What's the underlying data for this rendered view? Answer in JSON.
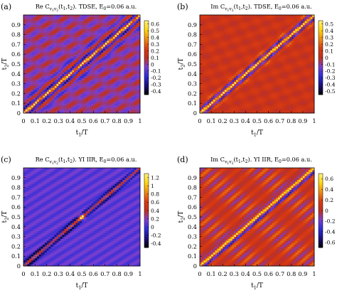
{
  "panels_order": [
    "a",
    "b",
    "c",
    "d"
  ],
  "chart_data": [
    {
      "type": "heatmap",
      "letter": "(a)",
      "title": "Re C",
      "title_sub": "v",
      "title_subsub": "1",
      "title_sub2": "v",
      "title_subsub2": "2",
      "title_rest": "(t",
      "title_rest_sub": "1",
      "title_rest2": ",t",
      "title_rest_sub2": "2",
      "title_rest3": "). TDSE, E",
      "title_rest_sub3": "0",
      "title_rest4": "=0.06 a.u.",
      "xlabel": "t",
      "xlabel_sub": "1",
      "xlabel_rest": "/T",
      "ylabel": "t",
      "ylabel_sub": "2",
      "ylabel_rest": "/T",
      "xlim": [
        0,
        1
      ],
      "ylim": [
        0,
        1
      ],
      "xticks": [
        "0",
        "0.1",
        "0.2",
        "0.3",
        "0.4",
        "0.5",
        "0.6",
        "0.7",
        "0.8",
        "0.9",
        "1"
      ],
      "yticks": [
        "0",
        "0.1",
        "0.2",
        "0.3",
        "0.4",
        "0.5",
        "0.6",
        "0.7",
        "0.8",
        "0.9"
      ],
      "colorbar_ticks": [
        "0.6",
        "0.5",
        "0.4",
        "0.3",
        "0.2",
        "0.1",
        "0",
        "-0.1",
        "-0.2",
        "-0.3",
        "-0.4"
      ],
      "colorbar_range": [
        -0.45,
        0.65
      ],
      "pattern": "re_tdse"
    },
    {
      "type": "heatmap",
      "letter": "(b)",
      "title": "Im C",
      "title_sub": "v",
      "title_subsub": "1",
      "title_sub2": "v",
      "title_subsub2": "2",
      "title_rest": "(t",
      "title_rest_sub": "1",
      "title_rest2": ",t",
      "title_rest_sub2": "2",
      "title_rest3": "). TDSE, E",
      "title_rest_sub3": "0",
      "title_rest4": "=0.06 a.u.",
      "xlabel": "t",
      "xlabel_sub": "1",
      "xlabel_rest": "/T",
      "ylabel": "t",
      "ylabel_sub": "2",
      "ylabel_rest": "/T",
      "xlim": [
        0,
        1
      ],
      "ylim": [
        0,
        1
      ],
      "xticks": [
        "0",
        "0.1",
        "0.2",
        "0.3",
        "0.4",
        "0.5",
        "0.6",
        "0.7",
        "0.8",
        "0.9",
        "1"
      ],
      "yticks": [
        "0",
        "0.1",
        "0.2",
        "0.3",
        "0.4",
        "0.5",
        "0.6",
        "0.7",
        "0.8",
        "0.9"
      ],
      "colorbar_ticks": [
        "0.5",
        "0.4",
        "0.3",
        "0.2",
        "0.1",
        "0",
        "-0.1",
        "-0.2",
        "-0.3",
        "-0.4",
        "-0.5"
      ],
      "colorbar_range": [
        -0.55,
        0.55
      ],
      "pattern": "im_tdse"
    },
    {
      "type": "heatmap",
      "letter": "(c)",
      "title": "Re C",
      "title_sub": "v",
      "title_subsub": "1",
      "title_sub2": "v",
      "title_subsub2": "2",
      "title_rest": "(t",
      "title_rest_sub": "1",
      "title_rest2": ",t",
      "title_rest_sub2": "2",
      "title_rest3": "). YI IIR, E",
      "title_rest_sub3": "0",
      "title_rest4": "=0.06 a.u.",
      "xlabel": "t",
      "xlabel_sub": "1",
      "xlabel_rest": "/T",
      "ylabel": "t",
      "ylabel_sub": "2",
      "ylabel_rest": "/T",
      "xlim": [
        0,
        1
      ],
      "ylim": [
        0,
        1
      ],
      "xticks": [
        "0",
        "0.1",
        "0.2",
        "0.3",
        "0.4",
        "0.5",
        "0.6",
        "0.7",
        "0.8",
        "0.9",
        "1"
      ],
      "yticks": [
        "0",
        "0.1",
        "0.2",
        "0.3",
        "0.4",
        "0.5",
        "0.6",
        "0.7",
        "0.8",
        "0.9"
      ],
      "colorbar_ticks": [
        "1.2",
        "1",
        "0.8",
        "0.6",
        "0.4",
        "0.2",
        "0",
        "-0.2",
        "-0.4"
      ],
      "colorbar_range": [
        -0.5,
        1.3
      ],
      "pattern": "re_yi"
    },
    {
      "type": "heatmap",
      "letter": "(d)",
      "title": "Im C",
      "title_sub": "v",
      "title_subsub": "1",
      "title_sub2": "v",
      "title_subsub2": "2",
      "title_rest": "(t",
      "title_rest_sub": "1",
      "title_rest2": ",t",
      "title_rest_sub2": "2",
      "title_rest3": "). YI IIR, E",
      "title_rest_sub3": "0",
      "title_rest4": "=0.06 a.u.",
      "xlabel": "t",
      "xlabel_sub": "1",
      "xlabel_rest": "/T",
      "ylabel": "t",
      "ylabel_sub": "2",
      "ylabel_rest": "/T",
      "xlim": [
        0,
        1
      ],
      "ylim": [
        0,
        1
      ],
      "xticks": [
        "0",
        "0.1",
        "0.2",
        "0.3",
        "0.4",
        "0.5",
        "0.6",
        "0.7",
        "0.8",
        "0.9",
        "1"
      ],
      "yticks": [
        "0",
        "0.1",
        "0.2",
        "0.3",
        "0.4",
        "0.5",
        "0.6",
        "0.7",
        "0.8",
        "0.9"
      ],
      "colorbar_ticks": [
        "0.6",
        "0.4",
        "0.2",
        "0",
        "-0.2",
        "-0.4",
        "-0.6"
      ],
      "colorbar_range": [
        -0.7,
        0.7
      ],
      "pattern": "im_yi"
    }
  ],
  "colormap": [
    "#000000",
    "#1b0f7a",
    "#2c2cd6",
    "#7a3fd0",
    "#c0301e",
    "#d83a12",
    "#ee8a10",
    "#ffd60a",
    "#fff07a"
  ]
}
